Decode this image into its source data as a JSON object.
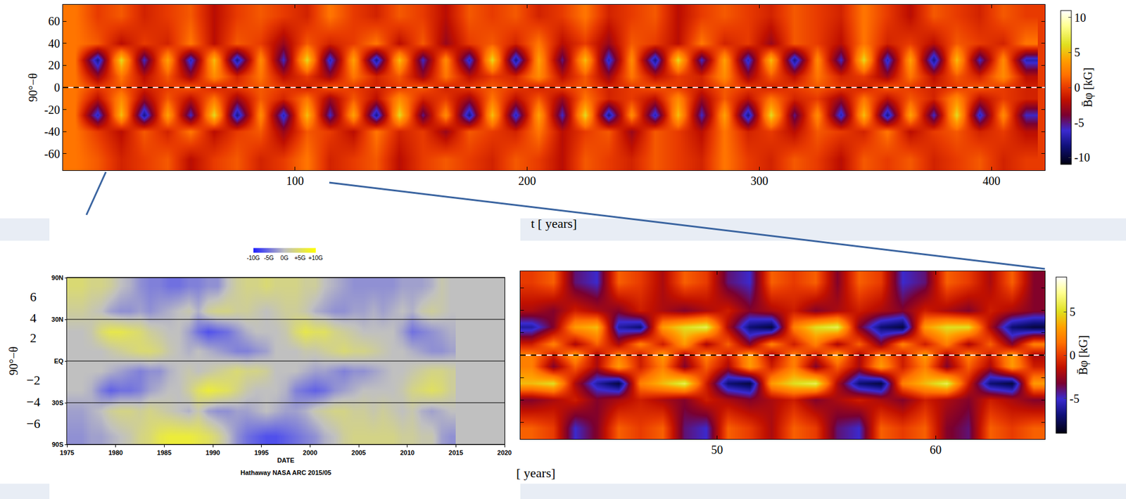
{
  "chart_data": [
    {
      "type": "heatmap",
      "x_label": "t [ years]",
      "y_label": "90°−θ",
      "x": [
        5,
        15,
        25,
        35,
        45,
        55,
        65,
        75,
        85,
        95,
        105,
        115,
        125,
        135,
        145,
        155,
        165,
        175,
        185,
        195,
        205,
        215,
        225,
        235,
        245,
        255,
        265,
        275,
        285,
        295,
        305,
        315,
        325,
        335,
        345,
        355,
        365,
        375,
        385,
        395,
        405,
        415
      ],
      "y": [
        -65,
        -40,
        -25,
        -10,
        0,
        10,
        25,
        40,
        65
      ],
      "z": [
        [
          2,
          1,
          -1,
          0,
          1,
          -2,
          0,
          1,
          -1,
          0,
          2,
          -1,
          0,
          1,
          -2,
          0,
          1,
          0,
          -1,
          1,
          0,
          -2,
          1,
          0,
          -1,
          1,
          0,
          -1,
          2,
          0,
          -1,
          1,
          0,
          -2,
          1,
          0,
          1,
          -1,
          0,
          1,
          -1,
          0
        ],
        [
          2,
          0,
          -2,
          1,
          -1,
          2,
          -2,
          0,
          1,
          -3,
          1,
          0,
          -2,
          2,
          -1,
          0,
          -3,
          1,
          0,
          -1,
          2,
          -2,
          0,
          1,
          -3,
          1,
          0,
          -2,
          2,
          -1,
          0,
          -2,
          1,
          0,
          -1,
          2,
          -2,
          0,
          1,
          -1,
          0,
          -2
        ],
        [
          2,
          -7,
          5,
          -8,
          4,
          -6,
          6,
          -8,
          3,
          -7,
          5,
          -6,
          4,
          -8,
          6,
          -5,
          3,
          -8,
          5,
          -7,
          4,
          -6,
          6,
          -8,
          3,
          -7,
          5,
          -6,
          4,
          -8,
          6,
          -5,
          3,
          -7,
          5,
          -8,
          4,
          -6,
          6,
          -7,
          3,
          -6
        ],
        [
          2,
          -2,
          3,
          -3,
          1,
          -2,
          2,
          -3,
          1,
          -1,
          2,
          -3,
          1,
          -2,
          3,
          -1,
          0,
          -3,
          2,
          -2,
          1,
          -3,
          2,
          -1,
          0,
          -2,
          3,
          -3,
          1,
          -2,
          2,
          -1,
          0,
          -3,
          2,
          -2,
          1,
          -1,
          3,
          -2,
          0,
          -1
        ],
        [
          2,
          0,
          1,
          -1,
          0,
          1,
          -1,
          0,
          1,
          0,
          -1,
          1,
          0,
          -1,
          0,
          1,
          -1,
          0,
          1,
          0,
          -1,
          0,
          1,
          -1,
          0,
          1,
          0,
          -1,
          1,
          0,
          -1,
          0,
          1,
          0,
          -1,
          1,
          0,
          -1,
          0,
          1,
          0,
          -1
        ],
        [
          2,
          -3,
          2,
          -2,
          1,
          -3,
          3,
          -1,
          2,
          -2,
          0,
          -3,
          2,
          -1,
          1,
          -3,
          2,
          -2,
          0,
          -1,
          3,
          -2,
          1,
          -3,
          2,
          -2,
          0,
          -1,
          3,
          -3,
          1,
          -2,
          2,
          -1,
          0,
          -3,
          2,
          -2,
          1,
          -1,
          3,
          -2
        ],
        [
          2,
          -8,
          6,
          -6,
          4,
          -7,
          5,
          -8,
          3,
          -6,
          6,
          -7,
          4,
          -8,
          5,
          -6,
          3,
          -7,
          6,
          -8,
          4,
          -5,
          5,
          -7,
          3,
          -8,
          6,
          -6,
          4,
          -7,
          5,
          -8,
          3,
          -6,
          6,
          -7,
          4,
          -8,
          5,
          -6,
          3,
          -7
        ],
        [
          2,
          1,
          -2,
          0,
          -1,
          2,
          -2,
          1,
          0,
          -3,
          1,
          -1,
          0,
          2,
          -2,
          1,
          -3,
          0,
          1,
          -1,
          2,
          -2,
          0,
          -3,
          1,
          0,
          -2,
          2,
          -1,
          0,
          -3,
          1,
          0,
          -2,
          2,
          -1,
          0,
          -2,
          1,
          0,
          -1,
          2
        ],
        [
          2,
          0,
          1,
          -1,
          0,
          1,
          -2,
          0,
          1,
          0,
          -1,
          2,
          0,
          -1,
          1,
          0,
          -2,
          1,
          0,
          1,
          -1,
          0,
          2,
          -1,
          0,
          1,
          -2,
          0,
          1,
          0,
          -1,
          1,
          0,
          -1,
          2,
          0,
          -2,
          1,
          0,
          -1,
          1,
          0
        ]
      ],
      "xlim": [
        0,
        423
      ],
      "xticks": [
        100,
        200,
        300,
        400
      ],
      "ylim": [
        -75,
        75
      ],
      "yticks": [
        60,
        40,
        20,
        0,
        -20,
        -40,
        -60
      ],
      "hline": 0,
      "colorbar": {
        "title": "B̄φ [kG]",
        "range": [
          -11,
          11
        ],
        "ticks": [
          10,
          5,
          0,
          -5,
          -10
        ]
      }
    },
    {
      "type": "heatmap",
      "x_label": "DATE",
      "y_label": "90°−θ",
      "credit": "Hathaway NASA ARC 2015/05",
      "x": [
        1975.5,
        1976.5,
        1977.5,
        1978.5,
        1979.5,
        1980.5,
        1981.5,
        1982.5,
        1983.5,
        1984.5,
        1985.5,
        1986.5,
        1987.5,
        1988.5,
        1989.5,
        1990.5,
        1991.5,
        1992.5,
        1993.5,
        1994.5,
        1995.5,
        1996.5,
        1997.5,
        1998.5,
        1999.5,
        2000.5,
        2001.5,
        2002.5,
        2003.5,
        2004.5,
        2005.5,
        2006.5,
        2007.5,
        2008.5,
        2009.5,
        2010.5,
        2011.5,
        2012.5,
        2013.5,
        2014.5
      ],
      "y": [
        -0.9,
        -0.6,
        -0.35,
        -0.12,
        0.12,
        0.35,
        0.6,
        0.9
      ],
      "z": [
        [
          -3,
          -3,
          -2,
          -2,
          -1,
          0,
          1,
          3,
          4,
          6,
          7,
          7,
          7,
          6,
          5,
          3,
          0,
          -3,
          -5,
          -6,
          -7,
          -7,
          -6,
          -5,
          -4,
          -3,
          -1,
          0,
          2,
          3,
          3,
          3,
          3,
          3,
          2,
          2,
          1,
          1,
          -2,
          -3
        ],
        [
          -2,
          -2,
          -1,
          0,
          2,
          3,
          3,
          2,
          3,
          2,
          1,
          0,
          -1,
          1,
          -2,
          -3,
          -3,
          -2,
          -2,
          -1,
          0,
          -1,
          -2,
          -2,
          -1,
          1,
          2,
          3,
          3,
          2,
          2,
          1,
          2,
          1,
          0,
          1,
          -1,
          -2,
          -1,
          0
        ],
        [
          0,
          0,
          -1,
          -4,
          -6,
          -5,
          -5,
          -4,
          -2,
          -1,
          0,
          0,
          2,
          5,
          7,
          6,
          5,
          3,
          1,
          0,
          0,
          0,
          -1,
          -4,
          -5,
          -6,
          -5,
          -3,
          -2,
          -1,
          0,
          0,
          0,
          0,
          1,
          3,
          4,
          5,
          4,
          2
        ],
        [
          0,
          0,
          0,
          0,
          -1,
          -2,
          -3,
          -4,
          -3,
          -3,
          -1,
          0,
          1,
          0,
          1,
          2,
          3,
          4,
          3,
          3,
          2,
          0,
          0,
          0,
          -1,
          -2,
          -2,
          -3,
          -4,
          -3,
          -3,
          -2,
          -1,
          0,
          0,
          1,
          2,
          3,
          3,
          2
        ],
        [
          0,
          0,
          0,
          0,
          1,
          2,
          3,
          4,
          4,
          3,
          1,
          0,
          -1,
          0,
          -1,
          -2,
          -3,
          -4,
          -4,
          -3,
          -2,
          0,
          0,
          0,
          1,
          1,
          2,
          3,
          4,
          3,
          3,
          2,
          1,
          0,
          0,
          -1,
          -2,
          -3,
          -3,
          -2
        ],
        [
          0,
          0,
          1,
          4,
          6,
          6,
          5,
          4,
          2,
          1,
          0,
          0,
          -2,
          -5,
          -7,
          -6,
          -5,
          -3,
          -1,
          0,
          0,
          0,
          1,
          4,
          6,
          5,
          5,
          3,
          2,
          1,
          0,
          0,
          0,
          0,
          -2,
          -5,
          -4,
          -3,
          -2,
          -1
        ],
        [
          2,
          2,
          1,
          0,
          -2,
          -3,
          -3,
          -2,
          -3,
          -2,
          -1,
          0,
          1,
          -1,
          2,
          3,
          3,
          2,
          2,
          1,
          0,
          1,
          2,
          2,
          1,
          -1,
          -2,
          -3,
          -3,
          -2,
          -2,
          -1,
          -2,
          -1,
          0,
          -1,
          1,
          2,
          1,
          0
        ],
        [
          4,
          4,
          3,
          3,
          2,
          0,
          -1,
          -3,
          -4,
          -4,
          -5,
          -5,
          -4,
          -4,
          -3,
          -3,
          0,
          2,
          3,
          3,
          4,
          3,
          3,
          3,
          2,
          2,
          0,
          -1,
          -2,
          -3,
          -3,
          -3,
          -3,
          -3,
          -2,
          -2,
          -2,
          -1,
          1,
          0
        ]
      ],
      "xlim": [
        1975,
        2020
      ],
      "xticks": [
        1975,
        1980,
        1985,
        1990,
        1995,
        2000,
        2005,
        2010,
        2015,
        2020
      ],
      "ylim": [
        -1,
        1
      ],
      "yticks": [
        {
          "value": 1,
          "label": "90N"
        },
        {
          "value": 0.5,
          "label": "30N"
        },
        {
          "value": 0,
          "label": "EQ"
        },
        {
          "value": -0.5,
          "label": "30S"
        },
        {
          "value": -1,
          "label": "90S"
        }
      ],
      "grid": true,
      "annotations": [
        {
          "text": "6",
          "y": 0.77
        },
        {
          "text": "4",
          "y": 0.52
        },
        {
          "text": "2",
          "y": 0.28
        },
        {
          "text": "−2",
          "y": -0.23
        },
        {
          "text": "−4",
          "y": -0.49
        },
        {
          "text": "−6",
          "y": -0.75
        }
      ],
      "colorbar": {
        "range": [
          -10,
          10
        ],
        "ticks": [
          {
            "value": -10,
            "label": "-10G"
          },
          {
            "value": -5,
            "label": "-5G"
          },
          {
            "value": 0,
            "label": "0G"
          },
          {
            "value": 5,
            "label": "+5G"
          },
          {
            "value": 10,
            "label": "+10G"
          }
        ]
      }
    },
    {
      "type": "heatmap",
      "x_label": "[ years]",
      "x": [
        41.5,
        42.5,
        43.5,
        44.5,
        45.5,
        46.5,
        47.5,
        48.5,
        49.5,
        50.5,
        51.5,
        52.5,
        53.5,
        54.5,
        55.5,
        56.5,
        57.5,
        58.5,
        59.5,
        60.5,
        61.5,
        62.5,
        63.5,
        64.5
      ],
      "y": [
        -65,
        -40,
        -25,
        -10,
        0,
        10,
        25,
        40,
        65
      ],
      "z": [
        [
          1,
          0,
          -5,
          -3,
          1,
          0,
          1,
          -4,
          -5,
          1,
          0,
          -2,
          1,
          0,
          -4,
          -5,
          1,
          0,
          1,
          -3,
          -4,
          1,
          0,
          1
        ],
        [
          -3,
          -2,
          -1,
          -3,
          -2,
          -1,
          -2,
          -3,
          -1,
          -2,
          -3,
          -2,
          -1,
          -3,
          -2,
          -1,
          -2,
          -3,
          -1,
          -2,
          -3,
          -1,
          -2,
          -3
        ],
        [
          4,
          5,
          -2,
          -6,
          -8,
          2,
          4,
          6,
          -1,
          -7,
          -8,
          3,
          5,
          6,
          -2,
          -7,
          -8,
          2,
          4,
          6,
          -1,
          -7,
          -8,
          3
        ],
        [
          2,
          -3,
          1,
          -2,
          3,
          -1,
          2,
          -3,
          1,
          -2,
          3,
          -1,
          2,
          -3,
          1,
          -2,
          3,
          -1,
          2,
          -3,
          1,
          -2,
          3,
          -1
        ],
        [
          2,
          -1,
          3,
          -2,
          2,
          -1,
          3,
          -2,
          2,
          -1,
          3,
          -2,
          2,
          -1,
          3,
          -2,
          2,
          -1,
          3,
          -2,
          2,
          -1,
          3,
          -2
        ],
        [
          -1,
          2,
          -2,
          1,
          -2,
          2,
          -1,
          3,
          -2,
          1,
          -3,
          2,
          -1,
          2,
          -2,
          1,
          -3,
          2,
          -1,
          2,
          -2,
          1,
          -3,
          2
        ],
        [
          -6,
          -3,
          3,
          4,
          -6,
          -7,
          3,
          5,
          6,
          -2,
          -7,
          -8,
          2,
          5,
          6,
          -3,
          -7,
          -8,
          3,
          5,
          5,
          -2,
          -7,
          -8
        ],
        [
          -2,
          -3,
          -1,
          -2,
          -3,
          -1,
          -2,
          -3,
          -2,
          -1,
          -3,
          -2,
          -1,
          -3,
          -2,
          -1,
          -2,
          -3,
          -1,
          -2,
          -3,
          -1,
          -2,
          -3
        ],
        [
          0,
          1,
          -4,
          -5,
          1,
          0,
          -2,
          1,
          0,
          -4,
          -5,
          1,
          0,
          1,
          -3,
          1,
          0,
          -5,
          -4,
          1,
          0,
          -2,
          1,
          -3
        ]
      ],
      "xlim": [
        41,
        65
      ],
      "xticks": [
        50,
        60
      ],
      "ylim": [
        -75,
        75
      ],
      "yticks": [
        60,
        40,
        20,
        0,
        -20,
        -40,
        -60
      ],
      "tick_labels": "x",
      "hline": 0,
      "colorbar": {
        "title": "B̄φ [kG]",
        "range": [
          -9,
          9
        ],
        "ticks": [
          5,
          0,
          -5
        ]
      }
    }
  ]
}
